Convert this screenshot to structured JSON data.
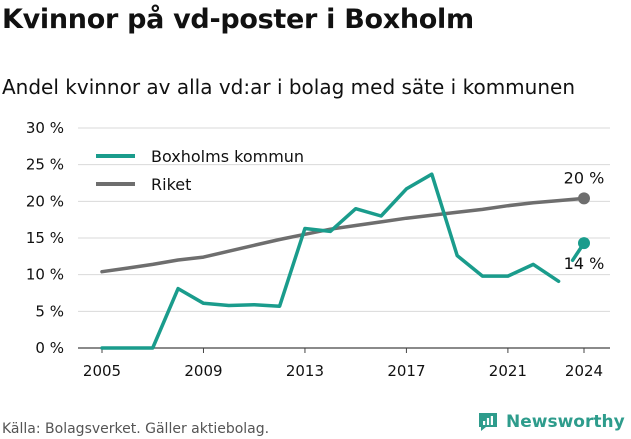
{
  "title": "Kvinnor på vd-poster i Boxholm",
  "subtitle": "Andel kvinnor av alla vd:ar i bolag med säte i kommunen",
  "source": "Källa: Bolagsverket. Gäller aktiebolag.",
  "brand": "Newsworthy",
  "colors": {
    "boxholm": "#1a9c8c",
    "riket": "#6e6e6e",
    "grid": "#d9d9d9"
  },
  "chart_data": {
    "type": "line",
    "title": "Kvinnor på vd-poster i Boxholm",
    "subtitle": "Andel kvinnor av alla vd:ar i bolag med säte i kommunen",
    "xlabel": "",
    "ylabel": "",
    "xlim": [
      2005,
      2024
    ],
    "ylim": [
      0,
      30
    ],
    "x_ticks": [
      2005,
      2009,
      2013,
      2017,
      2021,
      2024
    ],
    "y_ticks": [
      0,
      5,
      10,
      15,
      20,
      25,
      30
    ],
    "y_tick_labels": [
      "0 %",
      "5 %",
      "10 %",
      "15 %",
      "20 %",
      "25 %",
      "30 %"
    ],
    "grid": "horizontal",
    "legend_position": "top-left",
    "series": [
      {
        "name": "Boxholms kommun",
        "segments": [
          {
            "x": [
              2005,
              2006,
              2007,
              2008,
              2009,
              2010,
              2011,
              2012,
              2013,
              2014,
              2015,
              2016,
              2017,
              2018,
              2019,
              2020,
              2021,
              2022,
              2023
            ],
            "y": [
              0,
              0,
              0,
              8.1,
              6.1,
              5.8,
              5.9,
              5.7,
              16.3,
              15.9,
              19.0,
              18.0,
              21.7,
              23.7,
              12.6,
              9.8,
              9.8,
              11.4,
              9.1
            ]
          },
          {
            "x": [
              2024
            ],
            "y": [
              14.3
            ]
          }
        ],
        "end_label": "14 %"
      },
      {
        "name": "Riket",
        "segments": [
          {
            "x": [
              2005,
              2006,
              2007,
              2008,
              2009,
              2010,
              2011,
              2012,
              2013,
              2014,
              2015,
              2016,
              2017,
              2018,
              2019,
              2020,
              2021,
              2022,
              2023,
              2024
            ],
            "y": [
              10.4,
              10.9,
              11.4,
              12.0,
              12.4,
              13.2,
              14.0,
              14.8,
              15.5,
              16.2,
              16.7,
              17.2,
              17.7,
              18.1,
              18.5,
              18.9,
              19.4,
              19.8,
              20.1,
              20.4
            ]
          }
        ],
        "end_label": "20 %"
      }
    ]
  }
}
